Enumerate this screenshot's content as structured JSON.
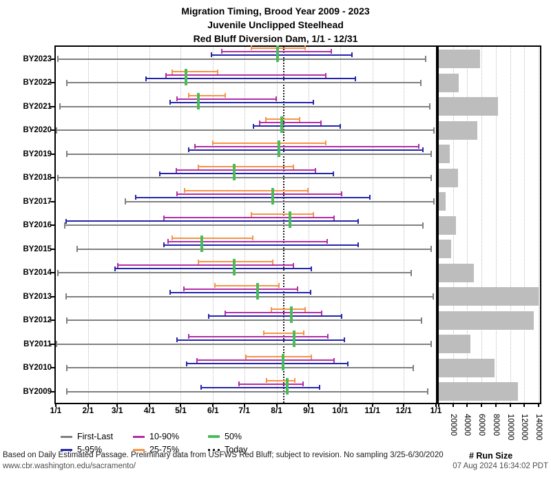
{
  "title": {
    "line1": "Migration Timing, Brood Year 2009 - 2023",
    "line2": "Juvenile Unclipped Steelhead",
    "line3": "Red Bluff Diversion Dam, 1/1 - 12/31"
  },
  "colors": {
    "first_last": "#7f7f7f",
    "p5_95": "#2323AC",
    "p10_90": "#B22CA5",
    "p25_75": "#F79243",
    "p50": "#47BD58",
    "today": "#1a1a1a",
    "run_bar": "#BDBDBD",
    "grid": "#bdbdbd",
    "frame": "#000000"
  },
  "legend": {
    "items": [
      {
        "label": "First-Last",
        "style": "solid",
        "color_key": "first_last"
      },
      {
        "label": "5-95%",
        "style": "solid",
        "color_key": "p5_95"
      },
      {
        "label": "10-90%",
        "style": "solid",
        "color_key": "p10_90"
      },
      {
        "label": "25-75%",
        "style": "solid",
        "color_key": "p25_75"
      },
      {
        "label": "50%",
        "style": "solid",
        "color_key": "p50"
      },
      {
        "label": "Today",
        "style": "dotted",
        "color_key": "today"
      }
    ]
  },
  "chart_data": [
    {
      "type": "range_timeline",
      "title": "Migration Timing, Brood Year 2009 - 2023; Juvenile Unclipped Steelhead; Red Bluff Diversion Dam, 1/1 - 12/31",
      "x_axis": {
        "ticks": [
          "1/1",
          "2/1",
          "3/1",
          "4/1",
          "5/1",
          "6/1",
          "7/1",
          "8/1",
          "9/1",
          "10/1",
          "11/1",
          "12/1",
          "1/1"
        ],
        "range": "1/1 - 12/31"
      },
      "today": "8/7",
      "levels": [
        "First-Last",
        "5-95%",
        "10-90%",
        "25-75%",
        "50%"
      ],
      "rows": [
        {
          "label": "BY2023",
          "first": "1/2",
          "p5": "5/30",
          "p10": "6/9",
          "p25": "7/7",
          "p50": "8/2",
          "p75": "8/29",
          "p90": "9/23",
          "p95": "10/13",
          "last": "12/23"
        },
        {
          "label": "BY2022",
          "first": "1/11",
          "p5": "3/28",
          "p10": "4/16",
          "p25": "4/22",
          "p50": "5/6",
          "p75": "6/6",
          "p90": "9/18",
          "p95": "10/16",
          "last": "12/18"
        },
        {
          "label": "BY2021",
          "first": "1/4",
          "p5": "4/20",
          "p10": "4/27",
          "p25": "5/8",
          "p50": "5/18",
          "p75": "6/13",
          "p90": "8/1",
          "p95": "9/6",
          "last": "12/27"
        },
        {
          "label": "BY2020",
          "first": "1/1",
          "p5": "7/9",
          "p10": "7/15",
          "p25": "7/21",
          "p50": "8/6",
          "p75": "8/24",
          "p90": "9/13",
          "p95": "10/2",
          "last": "12/31"
        },
        {
          "label": "BY2019",
          "first": "1/11",
          "p5": "5/8",
          "p10": "5/14",
          "p25": "5/31",
          "p50": "8/3",
          "p75": "9/18",
          "p90": "12/16",
          "p95": "12/20",
          "last": "12/28"
        },
        {
          "label": "BY2018",
          "first": "1/2",
          "p5": "4/10",
          "p10": "4/26",
          "p25": "5/17",
          "p50": "6/21",
          "p75": "8/18",
          "p90": "9/8",
          "p95": "9/25",
          "last": "12/28"
        },
        {
          "label": "BY2017",
          "first": "3/8",
          "p5": "3/18",
          "p10": "4/27",
          "p25": "5/4",
          "p50": "7/28",
          "p75": "9/1",
          "p90": "10/3",
          "p95": "10/30",
          "last": "12/31"
        },
        {
          "label": "BY2016",
          "first": "1/9",
          "p5": "1/10",
          "p10": "4/14",
          "p25": "7/7",
          "p50": "8/14",
          "p75": "9/6",
          "p90": "9/26",
          "p95": "10/19",
          "last": "12/20"
        },
        {
          "label": "BY2015",
          "first": "1/21",
          "p5": "4/14",
          "p10": "4/18",
          "p25": "4/22",
          "p50": "5/21",
          "p75": "7/10",
          "p90": "9/19",
          "p95": "10/19",
          "last": "12/28"
        },
        {
          "label": "BY2014",
          "first": "1/2",
          "p5": "2/26",
          "p10": "3/1",
          "p25": "5/17",
          "p50": "6/21",
          "p75": "7/29",
          "p90": "8/18",
          "p95": "9/4",
          "last": "12/9"
        },
        {
          "label": "BY2013",
          "first": "1/10",
          "p5": "4/20",
          "p10": "5/3",
          "p25": "6/2",
          "p50": "7/14",
          "p75": "8/4",
          "p90": "8/22",
          "p95": "9/3",
          "last": "12/30"
        },
        {
          "label": "BY2012",
          "first": "1/11",
          "p5": "5/27",
          "p10": "6/12",
          "p25": "7/26",
          "p50": "8/15",
          "p75": "8/29",
          "p90": "9/14",
          "p95": "10/3",
          "last": "12/19"
        },
        {
          "label": "BY2011",
          "first": "1/1",
          "p5": "4/27",
          "p10": "5/8",
          "p25": "7/19",
          "p50": "8/18",
          "p75": "8/28",
          "p90": "9/20",
          "p95": "10/6",
          "last": "12/28"
        },
        {
          "label": "BY2010",
          "first": "1/11",
          "p5": "5/6",
          "p10": "5/16",
          "p25": "7/2",
          "p50": "8/7",
          "p75": "9/4",
          "p90": "9/26",
          "p95": "10/9",
          "last": "12/11"
        },
        {
          "label": "BY2009",
          "first": "1/11",
          "p5": "5/20",
          "p10": "6/25",
          "p25": "7/22",
          "p50": "8/11",
          "p75": "8/19",
          "p90": "8/27",
          "p95": "9/12",
          "last": "12/25"
        }
      ]
    },
    {
      "type": "bar",
      "orientation": "horizontal",
      "xlabel": "# Run Size",
      "xlim": [
        0,
        140000
      ],
      "x_ticks": [
        "20000",
        "40000",
        "60000",
        "80000",
        "100000",
        "120000",
        "140000"
      ],
      "categories": [
        "BY2023",
        "BY2022",
        "BY2021",
        "BY2020",
        "BY2019",
        "BY2018",
        "BY2017",
        "BY2016",
        "BY2015",
        "BY2014",
        "BY2013",
        "BY2012",
        "BY2011",
        "BY2010",
        "BY2009"
      ],
      "values": [
        58000,
        28000,
        83000,
        54000,
        15000,
        27000,
        10000,
        24000,
        17000,
        49000,
        140000,
        133000,
        44000,
        78000,
        111000
      ]
    }
  ],
  "footer": {
    "note": "Based on Daily Estimated Passage. Preliminary data from USFWS Red Bluff; subject to revision. No sampling 3/25-6/30/2020",
    "url": "www.cbr.washington.edu/sacramento/",
    "timestamp": "07 Aug 2024 16:34:02 PDT"
  }
}
